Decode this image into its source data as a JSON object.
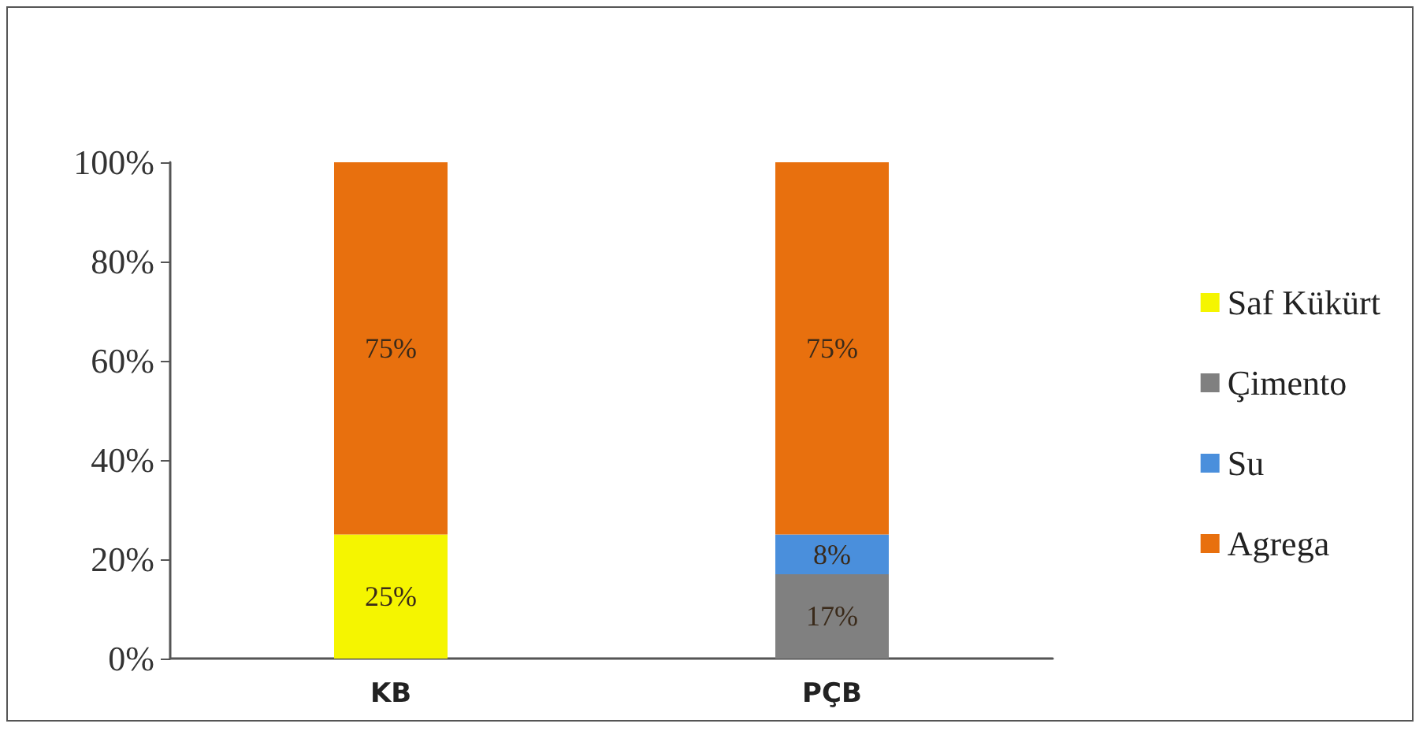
{
  "chart_data": {
    "type": "bar",
    "stacked": true,
    "categories": [
      "KB",
      "PÇB"
    ],
    "series": [
      {
        "name": "Saf Kükürt",
        "color": "#f5f500",
        "values": [
          25,
          null
        ],
        "value_labels": [
          "25%",
          null
        ]
      },
      {
        "name": "Çimento",
        "color": "#808080",
        "values": [
          null,
          17
        ],
        "value_labels": [
          null,
          "17%"
        ]
      },
      {
        "name": "Su",
        "color": "#4a8fdc",
        "values": [
          null,
          8
        ],
        "value_labels": [
          null,
          "8%"
        ]
      },
      {
        "name": "Agrega",
        "color": "#e8700e",
        "values": [
          75,
          75
        ],
        "value_labels": [
          "75%",
          "75%"
        ]
      }
    ],
    "ylim": [
      0,
      100
    ],
    "yticks": [
      {
        "value": 0,
        "label": "0%"
      },
      {
        "value": 20,
        "label": "20%"
      },
      {
        "value": 40,
        "label": "40%"
      },
      {
        "value": 60,
        "label": "60%"
      },
      {
        "value": 80,
        "label": "80%"
      },
      {
        "value": 100,
        "label": "100%"
      }
    ],
    "grid": false,
    "legend": "right"
  }
}
